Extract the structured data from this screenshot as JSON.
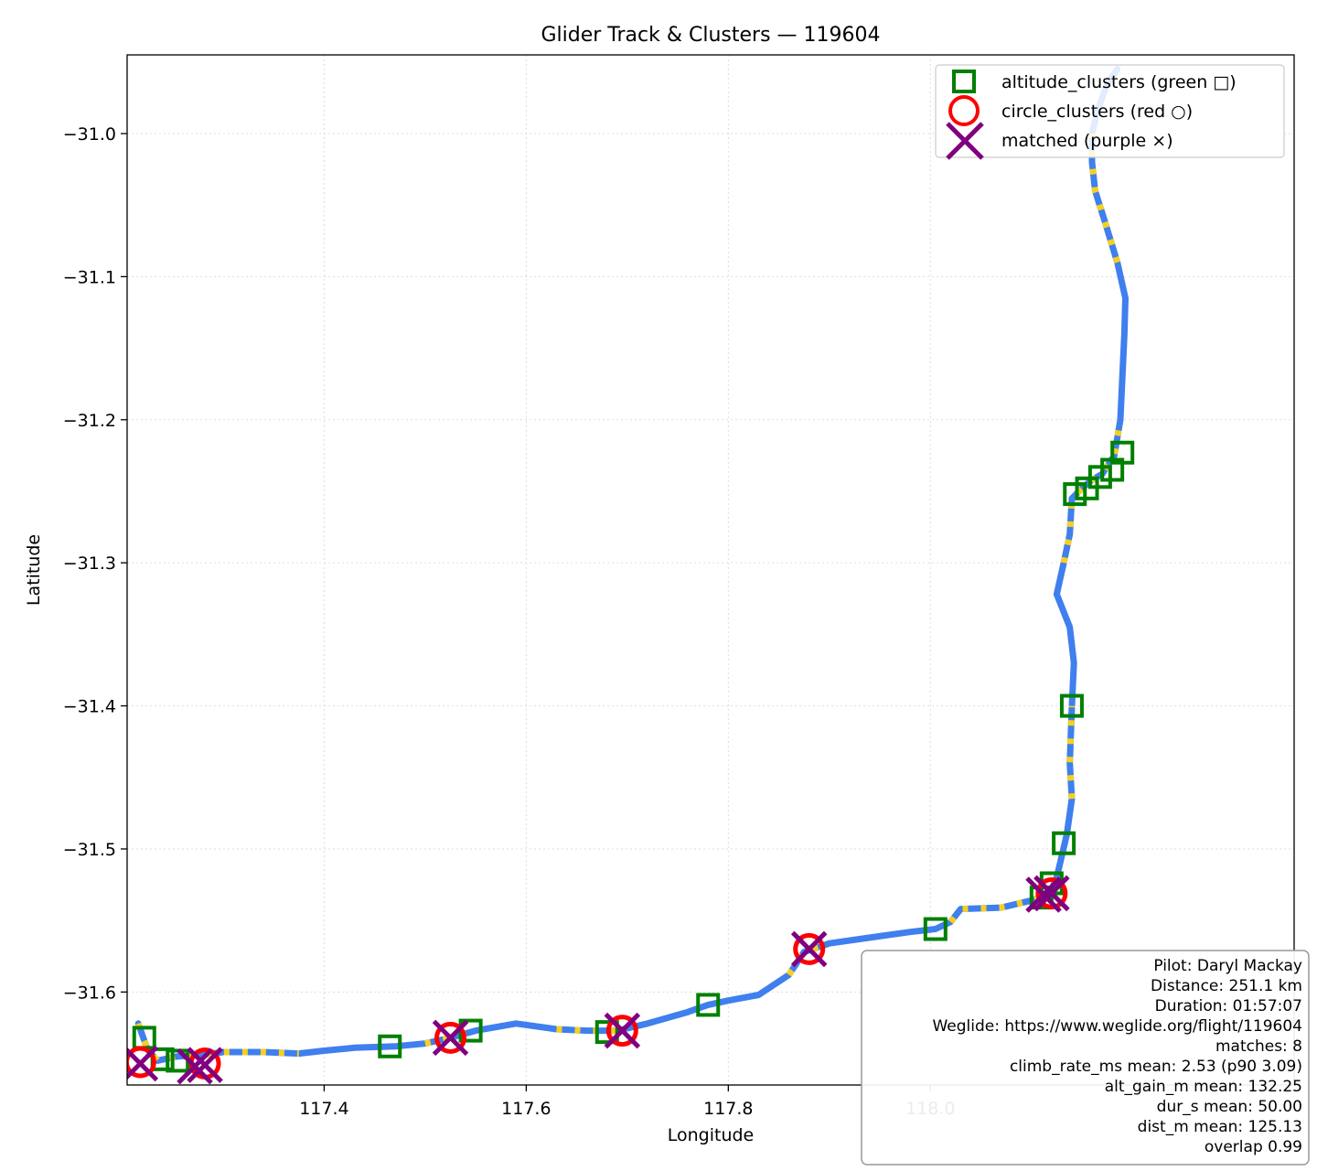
{
  "chart_data": {
    "type": "scatter",
    "title": "Glider Track & Clusters — 119604",
    "xlabel": "Longitude",
    "ylabel": "Latitude",
    "xlim": [
      117.205,
      118.36
    ],
    "ylim": [
      -31.665,
      -30.945
    ],
    "xticks": [
      117.4,
      117.6,
      117.8,
      118.0
    ],
    "xtick_labels": [
      "117.4",
      "117.6",
      "117.8",
      "118.0"
    ],
    "yticks": [
      -31.0,
      -31.1,
      -31.2,
      -31.3,
      -31.4,
      -31.5,
      -31.6
    ],
    "ytick_labels": [
      "−31.0",
      "−31.1",
      "−31.2",
      "−31.3",
      "−31.4",
      "−31.5",
      "−31.6"
    ],
    "grid": true,
    "legend_position": "top-right",
    "legend": [
      {
        "label": "altitude_clusters (green □)",
        "marker": "square",
        "color": "#008000"
      },
      {
        "label": "circle_clusters (red ○)",
        "marker": "circle",
        "color": "#ff0000"
      },
      {
        "label": "matched (purple ×)",
        "marker": "x",
        "color": "#800080"
      }
    ],
    "track": {
      "color": "#3f7fee",
      "climb_color": "#f5d020",
      "points": [
        [
          117.216,
          -31.622
        ],
        [
          117.22,
          -31.63
        ],
        [
          117.225,
          -31.64
        ],
        [
          117.235,
          -31.648
        ],
        [
          117.255,
          -31.645
        ],
        [
          117.28,
          -31.644
        ],
        [
          117.3,
          -31.642
        ],
        [
          117.34,
          -31.642
        ],
        [
          117.375,
          -31.643
        ],
        [
          117.4,
          -31.641
        ],
        [
          117.43,
          -31.639
        ],
        [
          117.47,
          -31.638
        ],
        [
          117.5,
          -31.636
        ],
        [
          117.525,
          -31.632
        ],
        [
          117.55,
          -31.627
        ],
        [
          117.59,
          -31.622
        ],
        [
          117.63,
          -31.626
        ],
        [
          117.66,
          -31.627
        ],
        [
          117.69,
          -31.627
        ],
        [
          117.72,
          -31.622
        ],
        [
          117.76,
          -31.614
        ],
        [
          117.78,
          -31.609
        ],
        [
          117.8,
          -31.606
        ],
        [
          117.83,
          -31.602
        ],
        [
          117.86,
          -31.588
        ],
        [
          117.875,
          -31.572
        ],
        [
          117.9,
          -31.566
        ],
        [
          117.94,
          -31.562
        ],
        [
          117.98,
          -31.558
        ],
        [
          118.005,
          -31.556
        ],
        [
          118.02,
          -31.551
        ],
        [
          118.03,
          -31.542
        ],
        [
          118.07,
          -31.541
        ],
        [
          118.1,
          -31.536
        ],
        [
          118.11,
          -31.533
        ],
        [
          118.12,
          -31.528
        ],
        [
          118.125,
          -31.52
        ],
        [
          118.13,
          -31.505
        ],
        [
          118.135,
          -31.49
        ],
        [
          118.14,
          -31.465
        ],
        [
          118.138,
          -31.44
        ],
        [
          118.14,
          -31.4
        ],
        [
          118.142,
          -31.37
        ],
        [
          118.138,
          -31.345
        ],
        [
          118.125,
          -31.322
        ],
        [
          118.132,
          -31.3
        ],
        [
          118.138,
          -31.28
        ],
        [
          118.14,
          -31.255
        ],
        [
          118.15,
          -31.248
        ],
        [
          118.16,
          -31.242
        ],
        [
          118.17,
          -31.238
        ],
        [
          118.182,
          -31.225
        ],
        [
          118.188,
          -31.2
        ],
        [
          118.19,
          -31.17
        ],
        [
          118.192,
          -31.14
        ],
        [
          118.193,
          -31.115
        ],
        [
          118.185,
          -31.09
        ],
        [
          118.172,
          -31.06
        ],
        [
          118.163,
          -31.04
        ],
        [
          118.16,
          -31.02
        ],
        [
          118.16,
          -31.0
        ],
        [
          118.165,
          -30.985
        ],
        [
          118.175,
          -30.965
        ],
        [
          118.185,
          -30.955
        ]
      ],
      "climb_segments": [
        [
          0,
          8
        ],
        [
          12,
          14
        ],
        [
          16,
          18
        ],
        [
          24,
          26
        ],
        [
          30,
          34
        ],
        [
          39,
          41
        ],
        [
          45,
          52
        ],
        [
          56,
          60
        ]
      ]
    },
    "altitude_clusters": [
      [
        117.222,
        -31.632
      ],
      [
        117.24,
        -31.647
      ],
      [
        117.255,
        -31.648
      ],
      [
        117.465,
        -31.638
      ],
      [
        117.545,
        -31.627
      ],
      [
        117.68,
        -31.628
      ],
      [
        117.78,
        -31.609
      ],
      [
        118.005,
        -31.556
      ],
      [
        118.11,
        -31.534
      ],
      [
        118.12,
        -31.524
      ],
      [
        118.132,
        -31.496
      ],
      [
        118.14,
        -31.4
      ],
      [
        118.143,
        -31.252
      ],
      [
        118.155,
        -31.248
      ],
      [
        118.168,
        -31.24
      ],
      [
        118.18,
        -31.235
      ],
      [
        118.19,
        -31.223
      ]
    ],
    "circle_clusters": [
      [
        117.218,
        -31.649
      ],
      [
        117.282,
        -31.65
      ],
      [
        117.525,
        -31.632
      ],
      [
        117.695,
        -31.627
      ],
      [
        117.88,
        -31.57
      ],
      [
        118.12,
        -31.531
      ]
    ],
    "matched": [
      [
        117.218,
        -31.65
      ],
      [
        117.272,
        -31.652
      ],
      [
        117.282,
        -31.651
      ],
      [
        117.525,
        -31.632
      ],
      [
        117.695,
        -31.627
      ],
      [
        117.88,
        -31.57
      ],
      [
        118.112,
        -31.532
      ],
      [
        118.12,
        -31.531
      ]
    ],
    "info_box": [
      "Pilot: Daryl Mackay",
      "Distance: 251.1 km",
      "Duration: 01:57:07",
      "Weglide: https://www.weglide.org/flight/119604",
      "matches: 8",
      "climb_rate_ms mean: 2.53 (p90 3.09)",
      "alt_gain_m mean: 132.25",
      "dur_s mean: 50.00",
      "dist_m mean: 125.13",
      "overlap 0.99"
    ]
  }
}
